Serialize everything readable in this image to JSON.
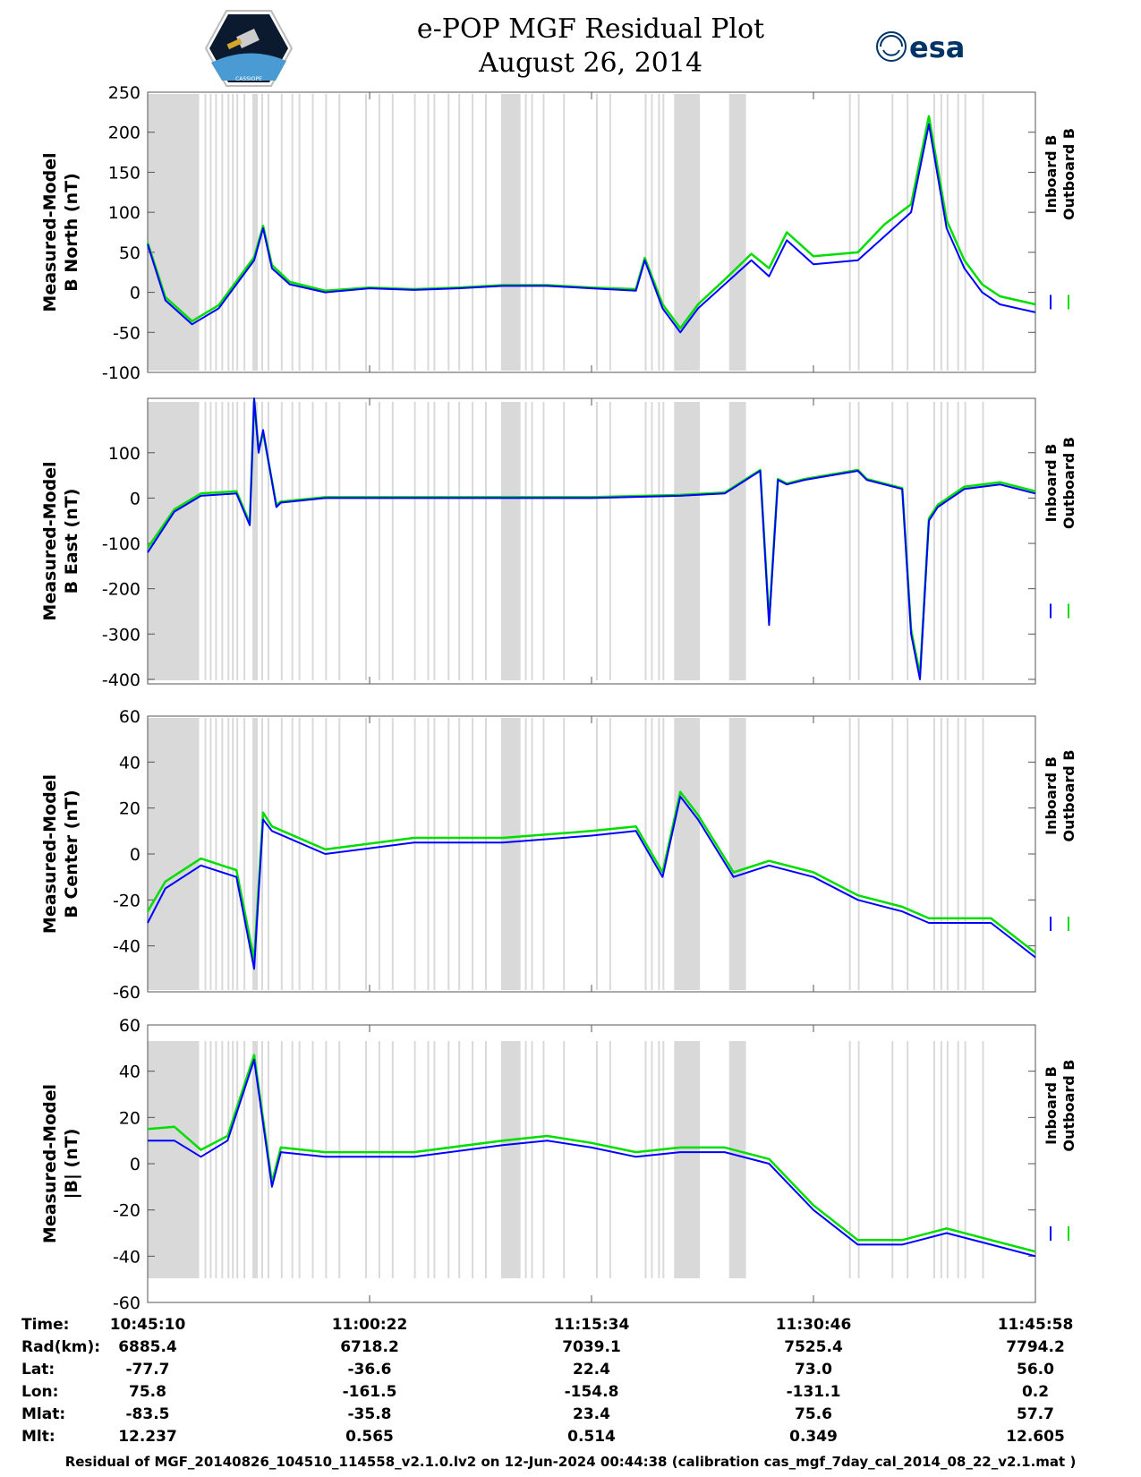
{
  "header": {
    "title_line1": "e-POP MGF Residual Plot",
    "title_line2": "August 26, 2014",
    "logo_left_text": "CASSIOPE",
    "logo_right_text": "esa"
  },
  "colors": {
    "inboard": "#0000ff",
    "outboard": "#00dd00",
    "shade": "#d9d9d9"
  },
  "chart_data": [
    {
      "type": "line",
      "ylabel_line1": "Measured-Model",
      "ylabel_line2": "B North (nT)",
      "ylim": [
        -100,
        250
      ],
      "yticks": [
        "250",
        "200",
        "150",
        "100",
        "50",
        "0",
        "-50",
        "-100"
      ],
      "yticks_values": [
        250,
        200,
        150,
        100,
        50,
        0,
        -50,
        -100
      ],
      "legend": [
        "Inboard B",
        "Outboard B"
      ],
      "x": [
        0,
        0.02,
        0.05,
        0.08,
        0.1,
        0.12,
        0.13,
        0.14,
        0.16,
        0.2,
        0.25,
        0.3,
        0.35,
        0.4,
        0.45,
        0.5,
        0.55,
        0.56,
        0.58,
        0.6,
        0.62,
        0.65,
        0.68,
        0.7,
        0.72,
        0.75,
        0.8,
        0.83,
        0.86,
        0.88,
        0.9,
        0.92,
        0.94,
        0.96,
        1.0
      ],
      "series": [
        {
          "name": "Inboard B",
          "values": [
            60,
            -10,
            -40,
            -20,
            10,
            40,
            80,
            30,
            10,
            0,
            5,
            3,
            5,
            8,
            8,
            5,
            2,
            40,
            -20,
            -50,
            -20,
            10,
            40,
            20,
            65,
            35,
            40,
            70,
            100,
            210,
            80,
            30,
            0,
            -15,
            -25
          ]
        },
        {
          "name": "Outboard B",
          "values": [
            62,
            -6,
            -36,
            -16,
            14,
            44,
            83,
            34,
            13,
            2,
            6,
            4,
            6,
            9,
            9,
            6,
            4,
            43,
            -15,
            -45,
            -15,
            16,
            48,
            30,
            75,
            45,
            50,
            85,
            110,
            220,
            90,
            40,
            10,
            -5,
            -15
          ]
        }
      ]
    },
    {
      "type": "line",
      "ylabel_line1": "Measured-Model",
      "ylabel_line2": "B East (nT)",
      "ylim": [
        -410,
        220
      ],
      "yticks": [
        "100",
        "0",
        "-100",
        "-200",
        "-300",
        "-400"
      ],
      "yticks_values": [
        100,
        0,
        -100,
        -200,
        -300,
        -400
      ],
      "legend": [
        "Inboard B",
        "Outboard B"
      ],
      "x": [
        0,
        0.03,
        0.06,
        0.1,
        0.115,
        0.12,
        0.125,
        0.13,
        0.145,
        0.15,
        0.2,
        0.3,
        0.4,
        0.5,
        0.6,
        0.65,
        0.69,
        0.7,
        0.71,
        0.72,
        0.74,
        0.8,
        0.81,
        0.85,
        0.86,
        0.87,
        0.88,
        0.89,
        0.92,
        0.96,
        1.0
      ],
      "series": [
        {
          "name": "Inboard B",
          "values": [
            -120,
            -30,
            5,
            10,
            -60,
            220,
            100,
            150,
            -20,
            -10,
            0,
            0,
            0,
            0,
            5,
            10,
            60,
            -280,
            40,
            30,
            40,
            60,
            40,
            20,
            -300,
            -400,
            -50,
            -20,
            20,
            30,
            10
          ]
        },
        {
          "name": "Outboard B",
          "values": [
            -110,
            -25,
            10,
            15,
            -55,
            215,
            105,
            145,
            -15,
            -8,
            2,
            2,
            2,
            2,
            7,
            12,
            62,
            -270,
            42,
            32,
            42,
            62,
            42,
            22,
            -290,
            -390,
            -45,
            -15,
            25,
            35,
            15
          ]
        }
      ]
    },
    {
      "type": "line",
      "ylabel_line1": "Measured-Model",
      "ylabel_line2": "B Center (nT)",
      "ylim": [
        -60,
        60
      ],
      "yticks": [
        "60",
        "40",
        "20",
        "0",
        "-20",
        "-40",
        "-60"
      ],
      "yticks_values": [
        60,
        40,
        20,
        0,
        -20,
        -40,
        -60
      ],
      "legend": [
        "Inboard B",
        "Outboard B"
      ],
      "x": [
        0,
        0.02,
        0.06,
        0.1,
        0.12,
        0.13,
        0.14,
        0.2,
        0.3,
        0.4,
        0.5,
        0.55,
        0.58,
        0.6,
        0.62,
        0.66,
        0.7,
        0.75,
        0.8,
        0.85,
        0.88,
        0.9,
        0.95,
        1.0
      ],
      "series": [
        {
          "name": "Inboard B",
          "values": [
            -30,
            -15,
            -5,
            -10,
            -50,
            15,
            10,
            0,
            5,
            5,
            8,
            10,
            -10,
            25,
            15,
            -10,
            -5,
            -10,
            -20,
            -25,
            -30,
            -30,
            -30,
            -45
          ]
        },
        {
          "name": "Outboard B",
          "values": [
            -25,
            -12,
            -2,
            -7,
            -46,
            18,
            12,
            2,
            7,
            7,
            10,
            12,
            -8,
            27,
            17,
            -8,
            -3,
            -8,
            -18,
            -23,
            -28,
            -28,
            -28,
            -43
          ]
        }
      ]
    },
    {
      "type": "line",
      "ylabel_line1": "Measured-Model",
      "ylabel_line2": "|B| (nT)",
      "ylim": [
        -60,
        60
      ],
      "yticks": [
        "60",
        "40",
        "20",
        "0",
        "-20",
        "-40",
        "-60"
      ],
      "yticks_values": [
        60,
        40,
        20,
        0,
        -20,
        -40,
        -60
      ],
      "legend": [
        "Inboard B",
        "Outboard B"
      ],
      "x": [
        0,
        0.03,
        0.06,
        0.09,
        0.12,
        0.14,
        0.15,
        0.2,
        0.3,
        0.4,
        0.45,
        0.5,
        0.55,
        0.6,
        0.65,
        0.7,
        0.75,
        0.8,
        0.85,
        0.9,
        0.95,
        1.0
      ],
      "series": [
        {
          "name": "Inboard B",
          "values": [
            10,
            10,
            3,
            10,
            45,
            -10,
            5,
            3,
            3,
            8,
            10,
            7,
            3,
            5,
            5,
            0,
            -20,
            -35,
            -35,
            -30,
            -35,
            -40
          ]
        },
        {
          "name": "Outboard B",
          "values": [
            15,
            16,
            6,
            12,
            47,
            -8,
            7,
            5,
            5,
            10,
            12,
            9,
            5,
            7,
            7,
            2,
            -18,
            -33,
            -33,
            -28,
            -33,
            -38
          ]
        }
      ]
    }
  ],
  "x_axis": {
    "tick_positions": [
      0,
      0.25,
      0.5,
      0.75,
      1.0
    ],
    "row_labels": [
      "Time:",
      "Rad(km):",
      "Lat:",
      "Lon:",
      "Mlat:",
      "Mlt:"
    ],
    "columns": [
      [
        "10:45:10",
        "6885.4",
        "-77.7",
        "75.8",
        "-83.5",
        "12.237"
      ],
      [
        "11:00:22",
        "6718.2",
        "-36.6",
        "-161.5",
        "-35.8",
        "0.565"
      ],
      [
        "11:15:34",
        "7039.1",
        "22.4",
        "-154.8",
        "23.4",
        "0.514"
      ],
      [
        "11:30:46",
        "7525.4",
        "73.0",
        "-131.1",
        "75.6",
        "0.349"
      ],
      [
        "11:45:58",
        "7794.2",
        "56.0",
        "0.2",
        "57.7",
        "12.605"
      ]
    ]
  },
  "shaded_intervals": [
    [
      0,
      0.058
    ],
    [
      0.064,
      0.066
    ],
    [
      0.07,
      0.072
    ],
    [
      0.076,
      0.078
    ],
    [
      0.083,
      0.085
    ],
    [
      0.09,
      0.092
    ],
    [
      0.095,
      0.097
    ],
    [
      0.1,
      0.102
    ],
    [
      0.108,
      0.11
    ],
    [
      0.118,
      0.124
    ],
    [
      0.128,
      0.13
    ],
    [
      0.135,
      0.137
    ],
    [
      0.15,
      0.152
    ],
    [
      0.162,
      0.164
    ],
    [
      0.17,
      0.172
    ],
    [
      0.185,
      0.187
    ],
    [
      0.2,
      0.202
    ],
    [
      0.215,
      0.217
    ],
    [
      0.245,
      0.247
    ],
    [
      0.26,
      0.262
    ],
    [
      0.275,
      0.277
    ],
    [
      0.3,
      0.302
    ],
    [
      0.315,
      0.317
    ],
    [
      0.322,
      0.324
    ],
    [
      0.338,
      0.34
    ],
    [
      0.35,
      0.352
    ],
    [
      0.365,
      0.367
    ],
    [
      0.38,
      0.382
    ],
    [
      0.398,
      0.42
    ],
    [
      0.425,
      0.427
    ],
    [
      0.432,
      0.434
    ],
    [
      0.445,
      0.447
    ],
    [
      0.468,
      0.47
    ],
    [
      0.505,
      0.507
    ],
    [
      0.52,
      0.522
    ],
    [
      0.56,
      0.562
    ],
    [
      0.567,
      0.569
    ],
    [
      0.575,
      0.577
    ],
    [
      0.58,
      0.582
    ],
    [
      0.593,
      0.622
    ],
    [
      0.655,
      0.674
    ],
    [
      0.79,
      0.792
    ],
    [
      0.8,
      0.802
    ],
    [
      0.838,
      0.84
    ],
    [
      0.855,
      0.857
    ],
    [
      0.885,
      0.887
    ],
    [
      0.893,
      0.895
    ],
    [
      0.9,
      0.902
    ],
    [
      0.912,
      0.914
    ],
    [
      0.92,
      0.922
    ],
    [
      0.94,
      0.942
    ]
  ],
  "footer": "Residual of MGF_20140826_104510_114558_v2.1.0.lv2 on 12-Jun-2024 00:44:38 (calibration cas_mgf_7day_cal_2014_08_22_v2.1.mat )"
}
